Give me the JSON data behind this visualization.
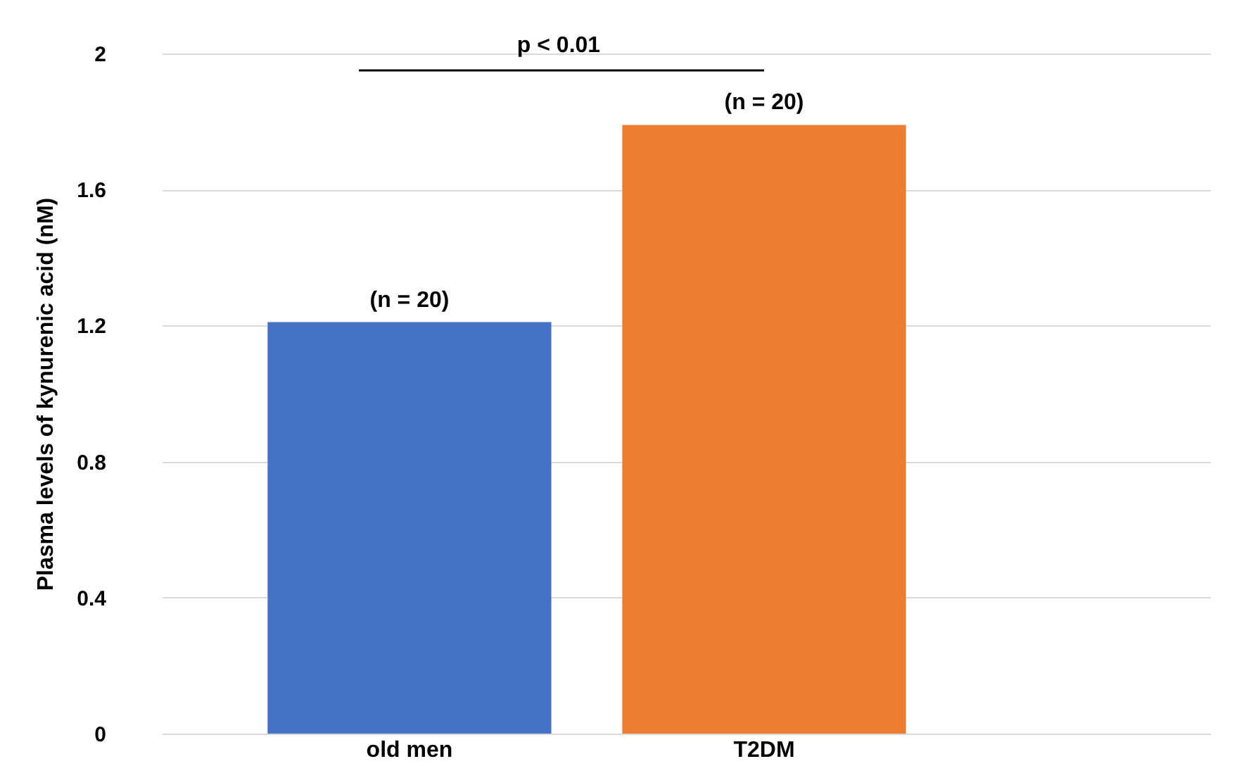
{
  "chart_data": {
    "type": "bar",
    "ylabel": "Plasma levels of kynurenic acid (nM)",
    "categories": [
      "old men",
      "T2DM"
    ],
    "values": [
      1.21,
      1.79
    ],
    "colors": [
      "#4472c4",
      "#ed7d31"
    ],
    "ylim": [
      0,
      2
    ],
    "yticks": [
      0,
      0.4,
      0.8,
      1.2,
      1.6,
      2
    ],
    "grid": "y",
    "annotations": [
      {
        "text": "(n = 20)",
        "x": "old men",
        "y": 1.21
      },
      {
        "text": "(n = 20)",
        "x": "T2DM",
        "y": 1.79
      },
      "p < 0.01"
    ]
  }
}
